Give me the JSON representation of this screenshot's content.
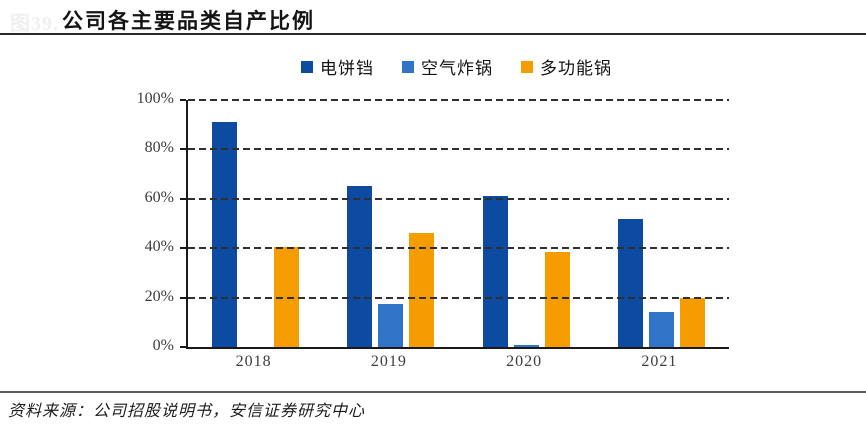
{
  "header": {
    "fig_label": "图39.",
    "title": "公司各主要品类自产比例"
  },
  "chart_data": {
    "type": "bar",
    "title": "公司各主要品类自产比例",
    "categories": [
      "2018",
      "2019",
      "2020",
      "2021"
    ],
    "series": [
      {
        "name": "电饼铛",
        "color": "#0D4BA3",
        "values": [
          91,
          65,
          61,
          52
        ]
      },
      {
        "name": "空气炸锅",
        "color": "#3173C7",
        "values": [
          0,
          17.5,
          1,
          14
        ]
      },
      {
        "name": "多功能锅",
        "color": "#F49C00",
        "values": [
          40.5,
          46,
          38.5,
          20
        ]
      }
    ],
    "xlabel": "",
    "ylabel": "",
    "ylim": [
      0,
      100
    ],
    "yticks": [
      "0%",
      "20%",
      "40%",
      "60%",
      "80%",
      "100%"
    ],
    "grid": "dashed-horizontal",
    "legend_position": "top-center"
  },
  "source": {
    "text": "资料来源：公司招股说明书，安信证券研究中心"
  }
}
